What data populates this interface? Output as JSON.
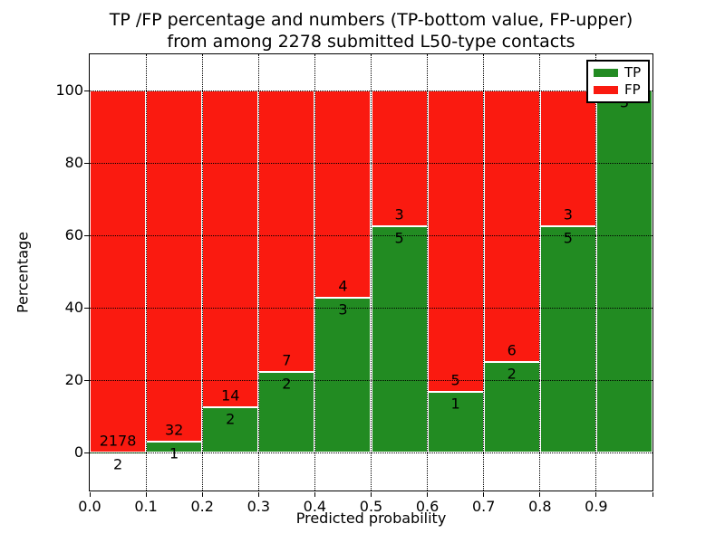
{
  "chart_data": {
    "type": "bar",
    "variant": "stacked-100-percent",
    "title_line1": "TP /FP percentage and numbers (TP-bottom value, FP-upper)",
    "title_line2": "from among 2278 submitted L50-type contacts",
    "xlabel": "Predicted probability",
    "ylabel": "Percentage",
    "total_submitted_contacts": 2278,
    "xlim": [
      0.0,
      1.0
    ],
    "ylim": [
      -10.5,
      110
    ],
    "bin_width": 0.1,
    "grid": "dotted",
    "legend": {
      "position": "upper right",
      "entries": [
        {
          "label": "TP",
          "color": "#228b22"
        },
        {
          "label": "FP",
          "color": "#fa1a10"
        }
      ]
    },
    "colors": {
      "tp": "#228b22",
      "fp": "#fa1a10",
      "bar_edge": "#ffffff",
      "grid": "#000000",
      "text": "#000000"
    },
    "yticks": [
      {
        "v": 0,
        "label": "0"
      },
      {
        "v": 20,
        "label": "20"
      },
      {
        "v": 40,
        "label": "40"
      },
      {
        "v": 60,
        "label": "60"
      },
      {
        "v": 80,
        "label": "80"
      },
      {
        "v": 100,
        "label": "100"
      }
    ],
    "xticks": [
      {
        "v": 0.0,
        "label": "0.0"
      },
      {
        "v": 0.1,
        "label": "0.1"
      },
      {
        "v": 0.2,
        "label": "0.2"
      },
      {
        "v": 0.3,
        "label": "0.3"
      },
      {
        "v": 0.4,
        "label": "0.4"
      },
      {
        "v": 0.5,
        "label": "0.5"
      },
      {
        "v": 0.6,
        "label": "0.6"
      },
      {
        "v": 0.7,
        "label": "0.7"
      },
      {
        "v": 0.8,
        "label": "0.8"
      },
      {
        "v": 0.9,
        "label": "0.9"
      },
      {
        "v": 1.0,
        "label": ""
      }
    ],
    "bars": [
      {
        "bin_start": 0.0,
        "bin_end": 0.1,
        "tp": 2,
        "fp": 2178,
        "tp_pct": 0.09,
        "tp_label": "2",
        "fp_label": "2178"
      },
      {
        "bin_start": 0.1,
        "bin_end": 0.2,
        "tp": 1,
        "fp": 32,
        "tp_pct": 3.03,
        "tp_label": "1",
        "fp_label": "32"
      },
      {
        "bin_start": 0.2,
        "bin_end": 0.3,
        "tp": 2,
        "fp": 14,
        "tp_pct": 12.5,
        "tp_label": "2",
        "fp_label": "14"
      },
      {
        "bin_start": 0.3,
        "bin_end": 0.4,
        "tp": 2,
        "fp": 7,
        "tp_pct": 22.22,
        "tp_label": "2",
        "fp_label": "7"
      },
      {
        "bin_start": 0.4,
        "bin_end": 0.5,
        "tp": 3,
        "fp": 4,
        "tp_pct": 42.86,
        "tp_label": "3",
        "fp_label": "4"
      },
      {
        "bin_start": 0.5,
        "bin_end": 0.6,
        "tp": 5,
        "fp": 3,
        "tp_pct": 62.5,
        "tp_label": "5",
        "fp_label": "3"
      },
      {
        "bin_start": 0.6,
        "bin_end": 0.7,
        "tp": 1,
        "fp": 5,
        "tp_pct": 16.67,
        "tp_label": "1",
        "fp_label": "5"
      },
      {
        "bin_start": 0.7,
        "bin_end": 0.8,
        "tp": 2,
        "fp": 6,
        "tp_pct": 25.0,
        "tp_label": "2",
        "fp_label": "6"
      },
      {
        "bin_start": 0.8,
        "bin_end": 0.9,
        "tp": 5,
        "fp": 3,
        "tp_pct": 62.5,
        "tp_label": "5",
        "fp_label": "3"
      },
      {
        "bin_start": 0.9,
        "bin_end": 1.0,
        "tp": 3,
        "fp": 0,
        "tp_pct": 100.0,
        "tp_label": "3",
        "fp_label": ""
      }
    ]
  }
}
